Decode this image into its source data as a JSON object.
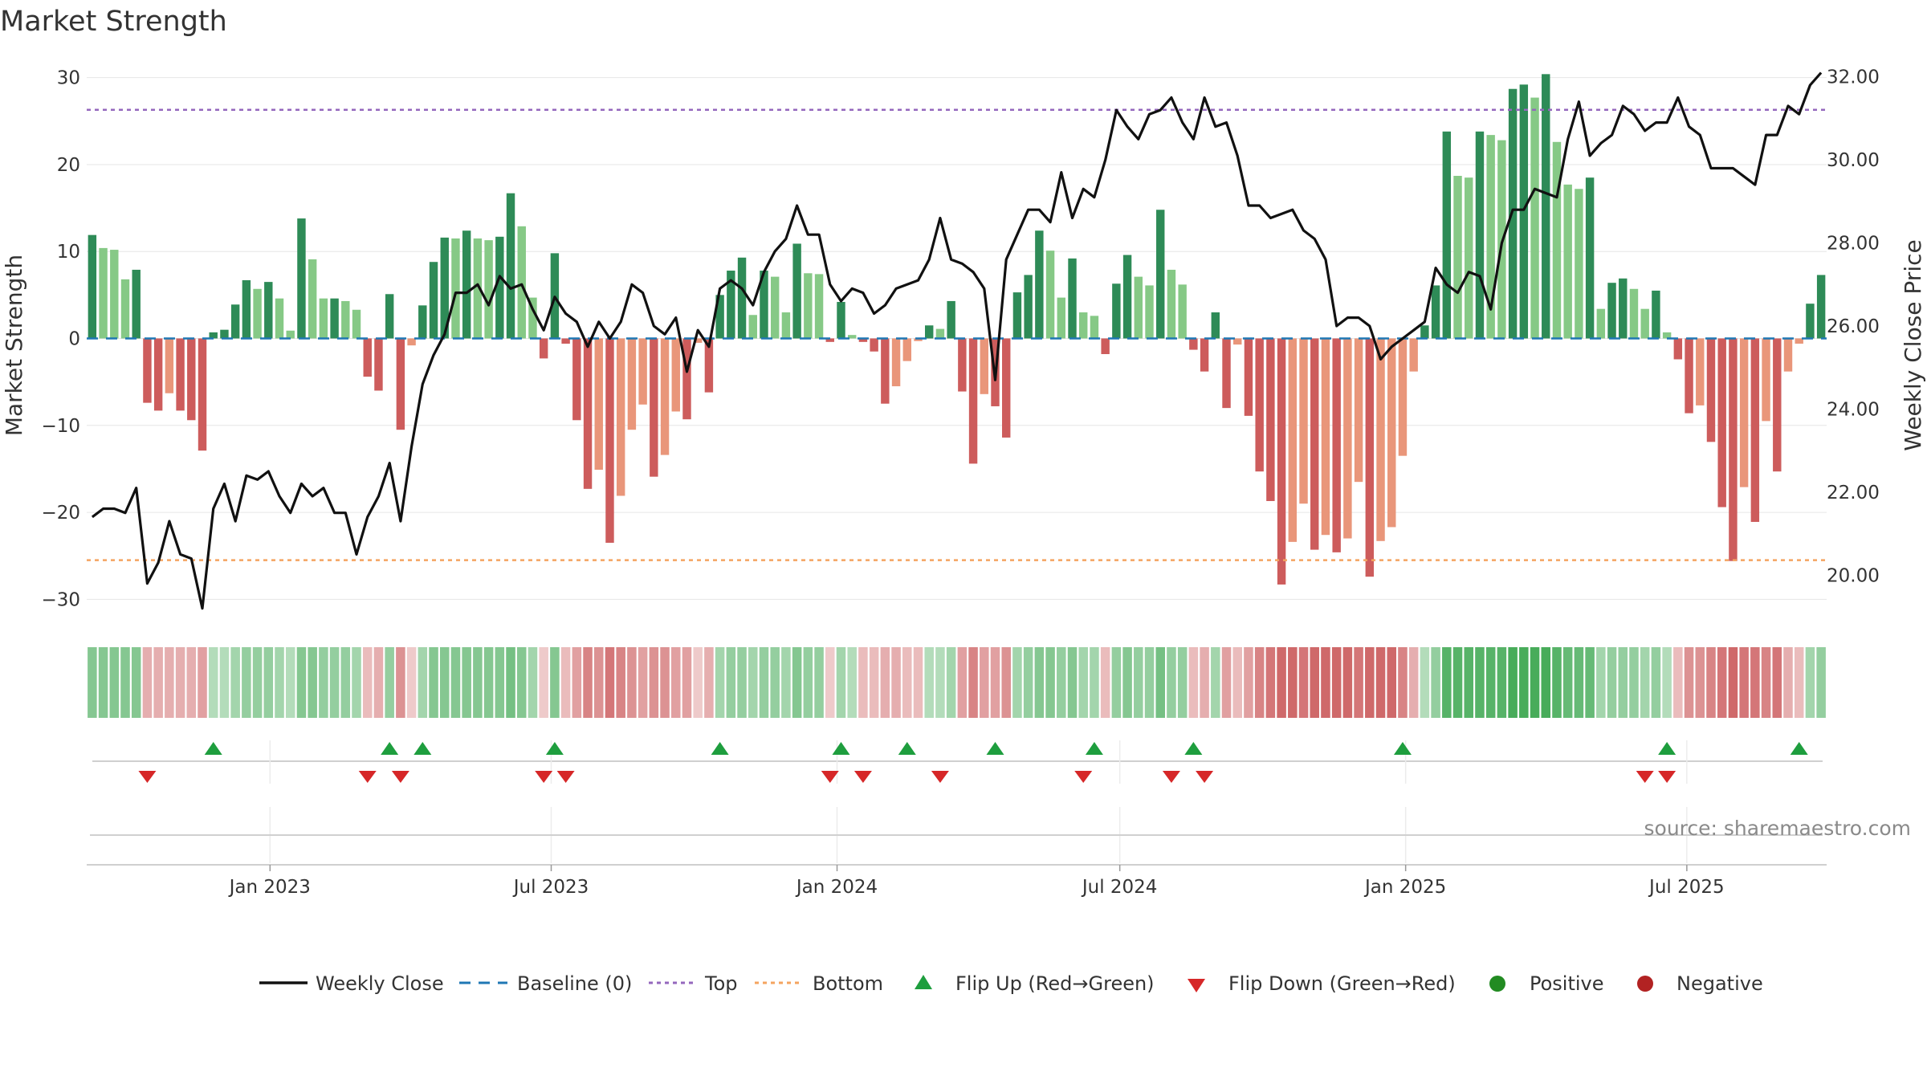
{
  "title": "Market Strength",
  "source": "source: sharemaestro.com",
  "colors": {
    "green_dark": "#2e8b57",
    "green_light": "#86c986",
    "red_dark": "#cd5c5c",
    "red_light": "#e9967a",
    "close_line": "#111111",
    "baseline": "#1f77b4",
    "top": "#9467bd",
    "bottom": "#f4a460",
    "flip_up": "#1e9e3e",
    "flip_down": "#d62728",
    "positive": "#228b22",
    "negative": "#b22222"
  },
  "legend": {
    "weekly_close": "Weekly Close",
    "baseline": "Baseline (0)",
    "top": "Top",
    "bottom": "Bottom",
    "flip_up": "Flip Up (Red→Green)",
    "flip_down": "Flip Down (Green→Red)",
    "positive": "Positive",
    "negative": "Negative"
  },
  "chart_data": {
    "type": "bar",
    "title": "Market Strength",
    "ylabel_left": "Market Strength",
    "ylabel_right": "Weekly Close Price",
    "ylim_left": [
      -32,
      32
    ],
    "ylim_right": [
      19.0,
      32.4
    ],
    "yticks_left": [
      {
        "value": 30,
        "label": "30"
      },
      {
        "value": 20,
        "label": "20"
      },
      {
        "value": 10,
        "label": "10"
      },
      {
        "value": 0,
        "label": "0"
      },
      {
        "value": -10,
        "label": "−10"
      },
      {
        "value": -20,
        "label": "−20"
      },
      {
        "value": -30,
        "label": "−30"
      }
    ],
    "yticks_right": [
      {
        "value": 32,
        "label": "32.00"
      },
      {
        "value": 30,
        "label": "30.00"
      },
      {
        "value": 28,
        "label": "28.00"
      },
      {
        "value": 26,
        "label": "26.00"
      },
      {
        "value": 24,
        "label": "24.00"
      },
      {
        "value": 22,
        "label": "22.00"
      },
      {
        "value": 20,
        "label": "20.00"
      }
    ],
    "x_start": "2022-09-05",
    "x_end": "2025-09-29",
    "xticks": [
      {
        "date": "2023-01-01",
        "label": "Jan 2023"
      },
      {
        "date": "2023-07-01",
        "label": "Jul 2023"
      },
      {
        "date": "2024-01-01",
        "label": "Jan 2024"
      },
      {
        "date": "2024-07-01",
        "label": "Jul 2024"
      },
      {
        "date": "2025-01-01",
        "label": "Jan 2025"
      },
      {
        "date": "2025-07-01",
        "label": "Jul 2025"
      }
    ],
    "top_level": 26.3,
    "bottom_level": -25.5,
    "baseline": 0,
    "strength": [
      11.9,
      10.4,
      10.2,
      6.8,
      7.9,
      -7.4,
      -8.3,
      -6.3,
      -8.3,
      -9.4,
      -12.9,
      0.7,
      1.0,
      3.9,
      6.7,
      5.7,
      6.5,
      4.6,
      0.9,
      13.8,
      9.1,
      4.6,
      4.6,
      4.3,
      3.3,
      -4.4,
      -6.0,
      5.1,
      -10.5,
      -0.8,
      3.8,
      8.8,
      11.6,
      11.5,
      12.4,
      11.5,
      11.3,
      11.7,
      16.7,
      12.9,
      4.7,
      -2.3,
      9.8,
      -0.6,
      -9.4,
      -17.3,
      -15.1,
      -23.5,
      -18.1,
      -10.5,
      -7.6,
      -15.9,
      -13.4,
      -8.4,
      -9.3,
      -0.5,
      -6.2,
      5.0,
      7.8,
      9.3,
      2.7,
      7.8,
      7.1,
      3.0,
      10.9,
      7.5,
      7.4,
      -0.4,
      4.2,
      0.4,
      -0.4,
      -1.5,
      -7.5,
      -5.5,
      -2.6,
      -0.3,
      1.5,
      1.1,
      4.3,
      -6.1,
      -14.4,
      -6.4,
      -7.8,
      -11.4,
      5.3,
      7.3,
      12.4,
      10.1,
      4.7,
      9.2,
      3.0,
      2.6,
      -1.8,
      6.3,
      9.6,
      7.1,
      6.1,
      14.8,
      7.9,
      6.2,
      -1.3,
      -3.8,
      3.0,
      -8.0,
      -0.7,
      -8.9,
      -15.3,
      -18.7,
      -28.3,
      -23.4,
      -19.0,
      -24.3,
      -22.6,
      -24.6,
      -23.0,
      -16.5,
      -27.4,
      -23.3,
      -21.7,
      -13.5,
      -3.8,
      1.5,
      6.1,
      23.8,
      18.7,
      18.5,
      23.8,
      23.4,
      22.8,
      28.7,
      29.2,
      27.7,
      30.4,
      22.6,
      17.7,
      17.2,
      18.5,
      3.4,
      6.4,
      6.9,
      5.7,
      3.4,
      5.5,
      0.7,
      -2.4,
      -8.6,
      -7.7,
      -11.9,
      -19.4,
      -25.6,
      -17.1,
      -21.1,
      -9.5,
      -15.3,
      -3.8,
      -0.6,
      4.0,
      7.3
    ],
    "weekly_close": [
      21.4,
      21.6,
      21.6,
      21.5,
      22.1,
      19.8,
      20.3,
      21.3,
      20.5,
      20.4,
      19.2,
      21.6,
      22.2,
      21.3,
      22.4,
      22.3,
      22.5,
      21.9,
      21.5,
      22.2,
      21.9,
      22.1,
      21.5,
      21.5,
      20.5,
      21.4,
      21.9,
      22.7,
      21.3,
      23.1,
      24.6,
      25.3,
      25.8,
      26.8,
      26.8,
      27.0,
      26.5,
      27.2,
      26.9,
      27.0,
      26.4,
      25.9,
      26.7,
      26.3,
      26.1,
      25.5,
      26.1,
      25.7,
      26.1,
      27.0,
      26.8,
      26.0,
      25.8,
      26.2,
      24.9,
      25.9,
      25.5,
      26.9,
      27.1,
      26.9,
      26.5,
      27.3,
      27.8,
      28.1,
      28.9,
      28.2,
      28.2,
      27.0,
      26.6,
      26.9,
      26.8,
      26.3,
      26.5,
      26.9,
      27.0,
      27.1,
      27.6,
      28.6,
      27.6,
      27.5,
      27.3,
      26.9,
      24.7,
      27.6,
      28.2,
      28.8,
      28.8,
      28.5,
      29.7,
      28.6,
      29.3,
      29.1,
      30.0,
      31.2,
      30.8,
      30.5,
      31.1,
      31.2,
      31.5,
      30.9,
      30.5,
      31.5,
      30.8,
      30.9,
      30.1,
      28.9,
      28.9,
      28.6,
      28.7,
      28.8,
      28.3,
      28.1,
      27.6,
      26.0,
      26.2,
      26.2,
      26.0,
      25.2,
      25.5,
      25.7,
      25.9,
      26.1,
      27.4,
      27.0,
      26.8,
      27.3,
      27.2,
      26.4,
      28.0,
      28.8,
      28.8,
      29.3,
      29.2,
      29.1,
      30.5,
      31.4,
      30.1,
      30.4,
      30.6,
      31.3,
      31.1,
      30.7,
      30.9,
      30.9,
      31.5,
      30.8,
      30.6,
      29.8,
      29.8,
      29.8,
      29.6,
      29.4,
      30.6,
      30.6,
      31.3,
      31.1,
      31.8,
      32.1
    ],
    "flip_up_idx": [
      11,
      27,
      30,
      42,
      57,
      68,
      74,
      82,
      91,
      100,
      119,
      143,
      155
    ],
    "flip_down_idx": [
      5,
      25,
      28,
      41,
      43,
      67,
      70,
      77,
      90,
      98,
      101,
      141,
      143
    ],
    "strip_intensity": [
      0.5,
      0.5,
      0.5,
      0.5,
      0.5,
      -0.3,
      -0.3,
      -0.3,
      -0.3,
      -0.3,
      -0.4,
      0.2,
      0.2,
      0.3,
      0.4,
      0.4,
      0.4,
      0.3,
      0.2,
      0.5,
      0.5,
      0.4,
      0.4,
      0.4,
      0.3,
      -0.2,
      -0.3,
      0.4,
      -0.5,
      -0.1,
      0.3,
      0.5,
      0.5,
      0.5,
      0.5,
      0.5,
      0.5,
      0.5,
      0.6,
      0.5,
      0.3,
      -0.1,
      0.5,
      -0.2,
      -0.4,
      -0.6,
      -0.5,
      -0.7,
      -0.6,
      -0.5,
      -0.4,
      -0.5,
      -0.5,
      -0.4,
      -0.4,
      -0.1,
      -0.3,
      0.3,
      0.4,
      0.4,
      0.3,
      0.4,
      0.4,
      0.3,
      0.5,
      0.4,
      0.4,
      -0.1,
      0.3,
      0.2,
      -0.2,
      -0.2,
      -0.3,
      -0.3,
      -0.2,
      -0.2,
      0.2,
      0.2,
      0.3,
      -0.4,
      -0.6,
      -0.4,
      -0.4,
      -0.5,
      0.3,
      0.4,
      0.5,
      0.5,
      0.4,
      0.5,
      0.3,
      0.3,
      -0.2,
      0.4,
      0.5,
      0.4,
      0.4,
      0.6,
      0.4,
      0.4,
      -0.2,
      -0.3,
      0.3,
      -0.4,
      -0.2,
      -0.4,
      -0.6,
      -0.7,
      -0.8,
      -0.8,
      -0.7,
      -0.8,
      -0.8,
      -0.8,
      -0.8,
      -0.7,
      -0.8,
      -0.8,
      -0.8,
      -0.6,
      -0.3,
      0.2,
      0.4,
      0.8,
      0.8,
      0.8,
      0.8,
      0.8,
      0.8,
      0.9,
      0.9,
      0.9,
      0.9,
      0.8,
      0.7,
      0.7,
      0.7,
      0.3,
      0.4,
      0.4,
      0.4,
      0.3,
      0.4,
      0.2,
      -0.2,
      -0.5,
      -0.5,
      -0.6,
      -0.7,
      -0.8,
      -0.7,
      -0.7,
      -0.6,
      -0.7,
      -0.3,
      -0.2,
      0.3,
      0.4
    ]
  }
}
